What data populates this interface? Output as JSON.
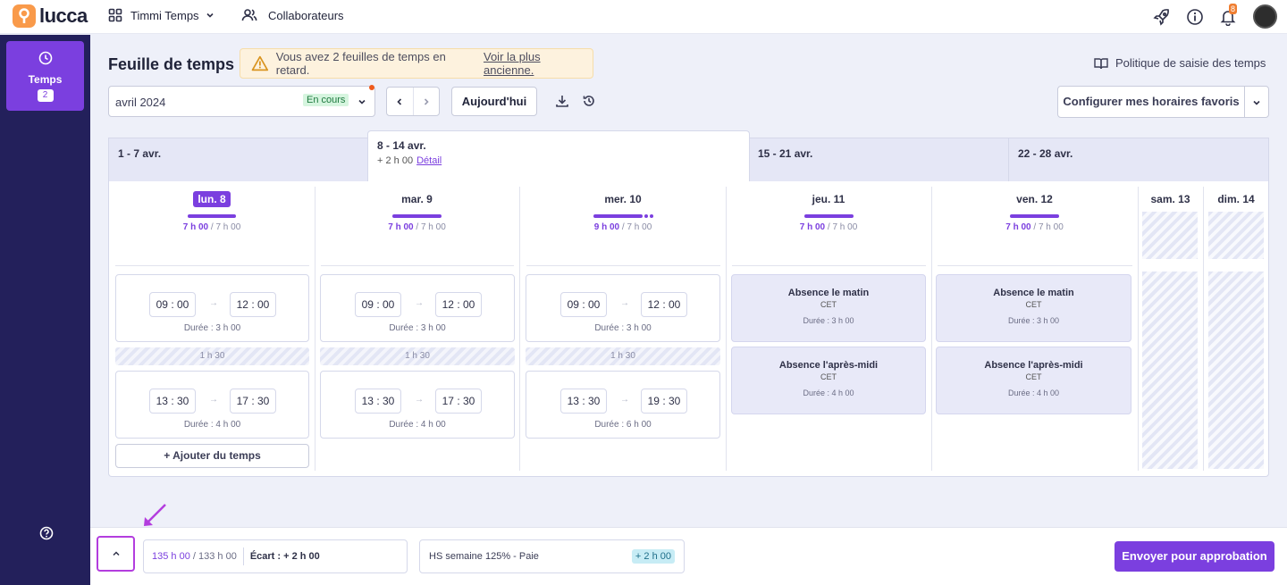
{
  "topbar": {
    "logo_text": "lucca",
    "app_name": "Timmi Temps",
    "collab_label": "Collaborateurs",
    "notif_count": "8"
  },
  "sidebar": {
    "temps_label": "Temps",
    "temps_count": "2"
  },
  "page": {
    "title": "Feuille de temps",
    "alert_message": "Vous avez 2 feuilles de temps en retard.",
    "alert_link": "Voir la plus ancienne.",
    "policy_label": "Politique de saisie des temps",
    "period_value": "avril 2024",
    "period_status": "En cours",
    "today_label": "Aujourd'hui",
    "config_label": "Configurer mes horaires favoris"
  },
  "weeks": [
    {
      "label": "1 - 7 avr."
    },
    {
      "label": "8 - 14 avr.",
      "sub": "+ 2 h 00",
      "link": "Détail"
    },
    {
      "label": "15 - 21 avr."
    },
    {
      "label": "22 - 28 avr."
    }
  ],
  "days": [
    {
      "name": "lun. 8",
      "done": "7 h 00",
      "target": "/ 7 h 00",
      "entries": [
        {
          "start_h": "09",
          "start_m": "00",
          "end_h": "12",
          "end_m": "00",
          "duration": "Durée : 3 h 00"
        },
        {
          "start_h": "13",
          "start_m": "30",
          "end_h": "17",
          "end_m": "30",
          "duration": "Durée : 4 h 00"
        }
      ],
      "break": "1 h 30"
    },
    {
      "name": "mar. 9",
      "done": "7 h 00",
      "target": "/ 7 h 00",
      "entries": [
        {
          "start_h": "09",
          "start_m": "00",
          "end_h": "12",
          "end_m": "00",
          "duration": "Durée : 3 h 00"
        },
        {
          "start_h": "13",
          "start_m": "30",
          "end_h": "17",
          "end_m": "30",
          "duration": "Durée : 4 h 00"
        }
      ],
      "break": "1 h 30"
    },
    {
      "name": "mer. 10",
      "done": "9 h 00",
      "target": "/ 7 h 00",
      "entries": [
        {
          "start_h": "09",
          "start_m": "00",
          "end_h": "12",
          "end_m": "00",
          "duration": "Durée : 3 h 00"
        },
        {
          "start_h": "13",
          "start_m": "30",
          "end_h": "19",
          "end_m": "30",
          "duration": "Durée : 6 h 00"
        }
      ],
      "break": "1 h 30"
    },
    {
      "name": "jeu. 11",
      "done": "7 h 00",
      "target": "/ 7 h 00",
      "absences": [
        {
          "title": "Absence le matin",
          "type": "CET",
          "duration": "Durée : 3 h 00"
        },
        {
          "title": "Absence l'après-midi",
          "type": "CET",
          "duration": "Durée : 4 h 00"
        }
      ]
    },
    {
      "name": "ven. 12",
      "done": "7 h 00",
      "target": "/ 7 h 00",
      "absences": [
        {
          "title": "Absence le matin",
          "type": "CET",
          "duration": "Durée : 3 h 00"
        },
        {
          "title": "Absence l'après-midi",
          "type": "CET",
          "duration": "Durée : 4 h 00"
        }
      ]
    },
    {
      "name": "sam. 13"
    },
    {
      "name": "dim. 14"
    }
  ],
  "add_time_label": "Ajouter du temps",
  "footer": {
    "total_done": "135 h 00",
    "total_target": "/ 133 h 00",
    "gap": "Écart : + 2 h 00",
    "hs_label": "HS semaine 125% - Paie",
    "hs_value": "+ 2 h 00",
    "send_label": "Envoyer pour approbation"
  },
  "colors": {
    "accent": "#7b3fdf",
    "sidebar": "#23205b",
    "logo": "#f99a4a"
  }
}
